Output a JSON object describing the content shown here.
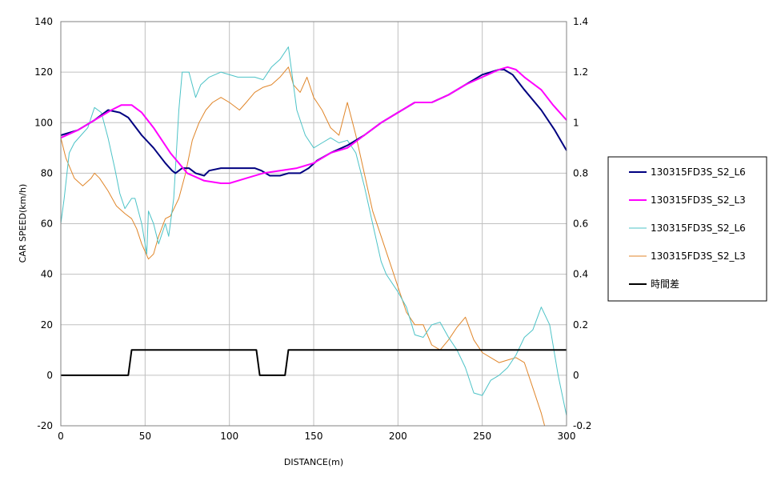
{
  "chart_data": {
    "type": "line",
    "xlabel": "DISTANCE(m)",
    "ylabel": "CAR SPEED(km/h)",
    "xlim": [
      0,
      300
    ],
    "ylim": [
      -20,
      140
    ],
    "y2lim": [
      -0.2,
      1.4
    ],
    "grid": true,
    "legend_position": "right",
    "x_ticks": [
      "0",
      "50",
      "100",
      "150",
      "200",
      "250",
      "300"
    ],
    "y_ticks": [
      "-20",
      "0",
      "20",
      "40",
      "60",
      "80",
      "100",
      "120",
      "140"
    ],
    "y2_ticks": [
      "-0.2",
      "0",
      "0.2",
      "0.4",
      "0.6",
      "0.8",
      "1",
      "1.2",
      "1.4"
    ],
    "series": [
      {
        "name": "130315FD3S_S2_L6",
        "color": "#000080",
        "width": 2,
        "axis": "left",
        "points": [
          [
            0,
            95
          ],
          [
            10,
            97
          ],
          [
            20,
            101
          ],
          [
            28,
            105
          ],
          [
            35,
            104
          ],
          [
            40,
            102
          ],
          [
            48,
            95
          ],
          [
            55,
            90
          ],
          [
            62,
            84
          ],
          [
            66,
            81
          ],
          [
            68,
            80
          ],
          [
            72,
            82
          ],
          [
            76,
            82
          ],
          [
            80,
            80
          ],
          [
            85,
            79
          ],
          [
            88,
            81
          ],
          [
            95,
            82
          ],
          [
            105,
            82
          ],
          [
            115,
            82
          ],
          [
            119,
            81
          ],
          [
            124,
            79
          ],
          [
            130,
            79
          ],
          [
            135,
            80
          ],
          [
            142,
            80
          ],
          [
            147,
            82
          ],
          [
            152,
            85
          ],
          [
            160,
            88
          ],
          [
            170,
            91
          ],
          [
            180,
            95
          ],
          [
            190,
            100
          ],
          [
            200,
            104
          ],
          [
            210,
            108
          ],
          [
            220,
            108
          ],
          [
            230,
            111
          ],
          [
            240,
            115
          ],
          [
            250,
            119
          ],
          [
            260,
            121
          ],
          [
            263,
            121
          ],
          [
            268,
            119
          ],
          [
            275,
            113
          ],
          [
            285,
            105
          ],
          [
            293,
            97
          ],
          [
            300,
            89
          ]
        ]
      },
      {
        "name": "130315FD3S_S2_L3",
        "color": "#ff00ff",
        "width": 2,
        "axis": "left",
        "points": [
          [
            0,
            94
          ],
          [
            10,
            97
          ],
          [
            20,
            101
          ],
          [
            30,
            105
          ],
          [
            36,
            107
          ],
          [
            42,
            107
          ],
          [
            48,
            104
          ],
          [
            55,
            98
          ],
          [
            65,
            88
          ],
          [
            75,
            80
          ],
          [
            85,
            77
          ],
          [
            95,
            76
          ],
          [
            100,
            76
          ],
          [
            110,
            78
          ],
          [
            120,
            80
          ],
          [
            130,
            81
          ],
          [
            140,
            82
          ],
          [
            150,
            84
          ],
          [
            160,
            88
          ],
          [
            170,
            90
          ],
          [
            180,
            95
          ],
          [
            190,
            100
          ],
          [
            200,
            104
          ],
          [
            210,
            108
          ],
          [
            220,
            108
          ],
          [
            230,
            111
          ],
          [
            240,
            115
          ],
          [
            250,
            118
          ],
          [
            260,
            121
          ],
          [
            265,
            122
          ],
          [
            270,
            121
          ],
          [
            275,
            118
          ],
          [
            285,
            113
          ],
          [
            292,
            107
          ],
          [
            300,
            101
          ]
        ]
      },
      {
        "name": "130315FD3S_S2_L6",
        "color": "#4dc3c7",
        "width": 1,
        "axis": "right",
        "points": [
          [
            0,
            0.6
          ],
          [
            2,
            0.7
          ],
          [
            5,
            0.88
          ],
          [
            8,
            0.92
          ],
          [
            12,
            0.95
          ],
          [
            16,
            0.98
          ],
          [
            20,
            1.06
          ],
          [
            24,
            1.04
          ],
          [
            28,
            0.94
          ],
          [
            32,
            0.82
          ],
          [
            35,
            0.72
          ],
          [
            38,
            0.66
          ],
          [
            42,
            0.7
          ],
          [
            44,
            0.7
          ],
          [
            48,
            0.6
          ],
          [
            51,
            0.48
          ],
          [
            52,
            0.65
          ],
          [
            55,
            0.6
          ],
          [
            58,
            0.52
          ],
          [
            62,
            0.6
          ],
          [
            64,
            0.55
          ],
          [
            67,
            0.7
          ],
          [
            70,
            1.05
          ],
          [
            72,
            1.2
          ],
          [
            76,
            1.2
          ],
          [
            80,
            1.1
          ],
          [
            83,
            1.15
          ],
          [
            88,
            1.18
          ],
          [
            95,
            1.2
          ],
          [
            105,
            1.18
          ],
          [
            115,
            1.18
          ],
          [
            120,
            1.17
          ],
          [
            125,
            1.22
          ],
          [
            130,
            1.25
          ],
          [
            135,
            1.3
          ],
          [
            137,
            1.2
          ],
          [
            140,
            1.05
          ],
          [
            145,
            0.95
          ],
          [
            150,
            0.9
          ],
          [
            155,
            0.92
          ],
          [
            160,
            0.94
          ],
          [
            165,
            0.92
          ],
          [
            170,
            0.93
          ],
          [
            175,
            0.88
          ],
          [
            180,
            0.75
          ],
          [
            185,
            0.6
          ],
          [
            190,
            0.45
          ],
          [
            193,
            0.4
          ],
          [
            200,
            0.33
          ],
          [
            205,
            0.27
          ],
          [
            210,
            0.16
          ],
          [
            215,
            0.15
          ],
          [
            220,
            0.2
          ],
          [
            225,
            0.21
          ],
          [
            230,
            0.15
          ],
          [
            235,
            0.1
          ],
          [
            240,
            0.03
          ],
          [
            245,
            -0.07
          ],
          [
            250,
            -0.08
          ],
          [
            255,
            -0.02
          ],
          [
            260,
            0.0
          ],
          [
            265,
            0.03
          ],
          [
            270,
            0.08
          ],
          [
            275,
            0.15
          ],
          [
            280,
            0.18
          ],
          [
            285,
            0.27
          ],
          [
            290,
            0.2
          ],
          [
            295,
            0.0
          ],
          [
            300,
            -0.16
          ]
        ]
      },
      {
        "name": "130315FD3S_S2_L3",
        "color": "#e0862a",
        "width": 1,
        "axis": "right",
        "points": [
          [
            0,
            0.94
          ],
          [
            3,
            0.86
          ],
          [
            8,
            0.78
          ],
          [
            13,
            0.75
          ],
          [
            18,
            0.78
          ],
          [
            20,
            0.8
          ],
          [
            23,
            0.78
          ],
          [
            28,
            0.73
          ],
          [
            33,
            0.67
          ],
          [
            38,
            0.64
          ],
          [
            42,
            0.62
          ],
          [
            45,
            0.58
          ],
          [
            48,
            0.52
          ],
          [
            52,
            0.46
          ],
          [
            55,
            0.48
          ],
          [
            58,
            0.55
          ],
          [
            62,
            0.62
          ],
          [
            65,
            0.63
          ],
          [
            70,
            0.7
          ],
          [
            74,
            0.8
          ],
          [
            78,
            0.93
          ],
          [
            82,
            1.0
          ],
          [
            86,
            1.05
          ],
          [
            90,
            1.08
          ],
          [
            95,
            1.1
          ],
          [
            100,
            1.08
          ],
          [
            106,
            1.05
          ],
          [
            110,
            1.08
          ],
          [
            115,
            1.12
          ],
          [
            120,
            1.14
          ],
          [
            125,
            1.15
          ],
          [
            130,
            1.18
          ],
          [
            135,
            1.22
          ],
          [
            138,
            1.15
          ],
          [
            142,
            1.12
          ],
          [
            146,
            1.18
          ],
          [
            150,
            1.1
          ],
          [
            155,
            1.05
          ],
          [
            160,
            0.98
          ],
          [
            165,
            0.95
          ],
          [
            170,
            1.08
          ],
          [
            175,
            0.95
          ],
          [
            180,
            0.8
          ],
          [
            185,
            0.65
          ],
          [
            190,
            0.55
          ],
          [
            195,
            0.45
          ],
          [
            200,
            0.35
          ],
          [
            205,
            0.25
          ],
          [
            210,
            0.2
          ],
          [
            215,
            0.2
          ],
          [
            220,
            0.12
          ],
          [
            225,
            0.1
          ],
          [
            230,
            0.14
          ],
          [
            235,
            0.19
          ],
          [
            240,
            0.23
          ],
          [
            245,
            0.14
          ],
          [
            250,
            0.09
          ],
          [
            255,
            0.07
          ],
          [
            260,
            0.05
          ],
          [
            265,
            0.06
          ],
          [
            270,
            0.07
          ],
          [
            275,
            0.05
          ],
          [
            280,
            -0.05
          ],
          [
            285,
            -0.15
          ],
          [
            287,
            -0.2
          ]
        ]
      },
      {
        "name": "時間差",
        "color": "#000000",
        "width": 2,
        "axis": "left",
        "points": [
          [
            0,
            0
          ],
          [
            40,
            0
          ],
          [
            42,
            10
          ],
          [
            116,
            10
          ],
          [
            118,
            0
          ],
          [
            133,
            0
          ],
          [
            135,
            10
          ],
          [
            300,
            10
          ]
        ]
      }
    ]
  }
}
